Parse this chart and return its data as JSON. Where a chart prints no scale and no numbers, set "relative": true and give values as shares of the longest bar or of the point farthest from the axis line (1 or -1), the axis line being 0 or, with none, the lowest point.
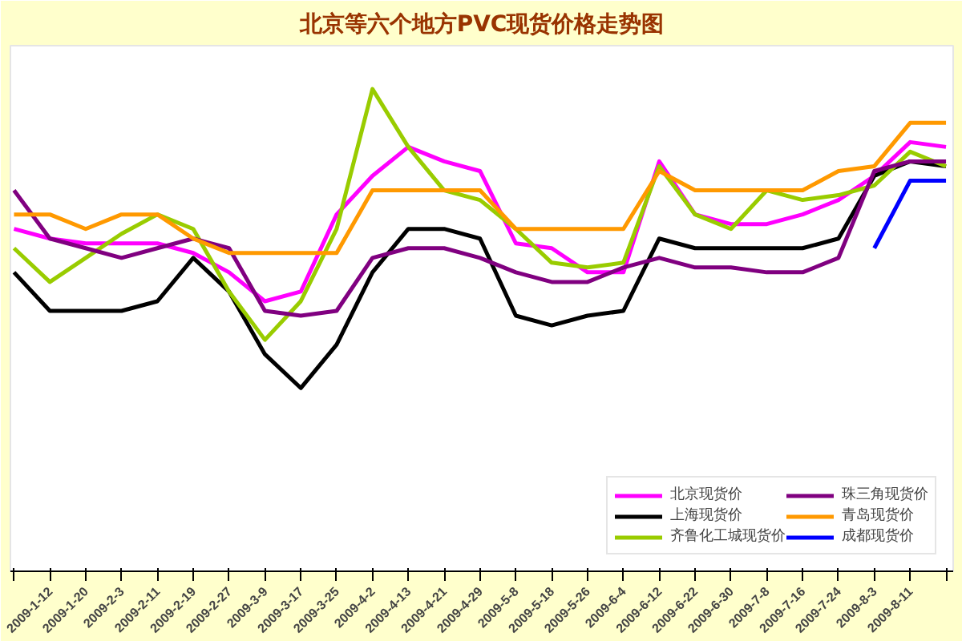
{
  "chart_data": {
    "type": "line",
    "title": "北京等六个地方PVC现货价格走势图",
    "relative": true,
    "categories": [
      null,
      "2009-1-12",
      "2009-1-20",
      "2009-2-3",
      "2009-2-11",
      "2009-2-19",
      "2009-2-27",
      "2009-3-9",
      "2009-3-17",
      "2009-3-25",
      "2009-4-2",
      "2009-4-13",
      "2009-4-21",
      "2009-4-29",
      "2009-5-8",
      "2009-5-18",
      "2009-5-26",
      "2009-6-4",
      "2009-6-12",
      "2009-6-22",
      "2009-6-30",
      "2009-7-8",
      "2009-7-16",
      "2009-7-24",
      "2009-8-3",
      "2009-8-11",
      null
    ],
    "series": [
      {
        "name": "北京现货价",
        "color": "#ff00ff",
        "values": [
          0.71,
          0.69,
          0.68,
          0.68,
          0.68,
          0.66,
          0.62,
          0.56,
          0.58,
          0.74,
          0.82,
          0.88,
          0.85,
          0.83,
          0.68,
          0.67,
          0.62,
          0.62,
          0.85,
          0.74,
          0.72,
          0.72,
          0.74,
          0.77,
          0.82,
          0.89,
          0.88
        ]
      },
      {
        "name": "上海现货价",
        "color": "#000000",
        "values": [
          0.62,
          0.54,
          0.54,
          0.54,
          0.56,
          0.65,
          0.58,
          0.45,
          0.38,
          0.47,
          0.62,
          0.71,
          0.71,
          0.69,
          0.53,
          0.51,
          0.53,
          0.54,
          0.69,
          0.67,
          0.67,
          0.67,
          0.67,
          0.69,
          0.82,
          0.85,
          0.84
        ]
      },
      {
        "name": "齐鲁化工城现货价",
        "color": "#99cc00",
        "values": [
          0.67,
          0.6,
          0.65,
          0.7,
          0.74,
          0.71,
          0.58,
          0.48,
          0.56,
          0.71,
          1,
          0.88,
          0.79,
          0.77,
          0.71,
          0.64,
          0.63,
          0.64,
          0.84,
          0.74,
          0.71,
          0.79,
          0.77,
          0.78,
          0.8,
          0.87,
          0.84
        ]
      },
      {
        "name": "珠三角现货价",
        "color": "#800080",
        "values": [
          0.79,
          0.69,
          0.67,
          0.65,
          0.67,
          0.69,
          0.67,
          0.54,
          0.53,
          0.54,
          0.65,
          0.67,
          0.67,
          0.65,
          0.62,
          0.6,
          0.6,
          0.63,
          0.65,
          0.63,
          0.63,
          0.62,
          0.62,
          0.65,
          0.83,
          0.85,
          0.85
        ]
      },
      {
        "name": "青岛现货价",
        "color": "#ff9900",
        "values": [
          0.74,
          0.74,
          0.71,
          0.74,
          0.74,
          0.69,
          0.66,
          0.66,
          0.66,
          0.66,
          0.79,
          0.79,
          0.79,
          0.79,
          0.71,
          0.71,
          0.71,
          0.71,
          0.83,
          0.79,
          0.79,
          0.79,
          0.79,
          0.83,
          0.84,
          0.93,
          0.93
        ]
      },
      {
        "name": "成都现货价",
        "color": "#0000ff",
        "values": [
          null,
          null,
          null,
          null,
          null,
          null,
          null,
          null,
          null,
          null,
          null,
          null,
          null,
          null,
          null,
          null,
          null,
          null,
          null,
          null,
          null,
          null,
          null,
          null,
          0.67,
          0.81,
          0.81
        ]
      }
    ],
    "legend": "bottom right"
  }
}
